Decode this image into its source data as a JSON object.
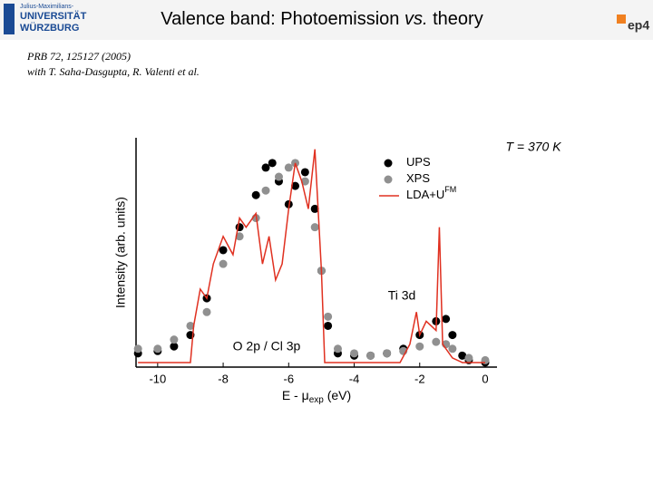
{
  "slide": {
    "logo_lines": [
      "Julius-Maximilians-",
      "UNIVERSITÄT",
      "WÜRZBURG"
    ],
    "title_parts": [
      "Valence band: Photoemission ",
      "vs.",
      " theory"
    ],
    "group_logo": "ep4",
    "reference": [
      "PRB 72, 125127 (2005)",
      "with T. Saha-Dasgupta, R. Valenti et al."
    ]
  },
  "chart_data": {
    "type": "scatter",
    "xlabel_parts": [
      "E - μ",
      "exp",
      " (eV)"
    ],
    "ylabel": "Intensity (arb. units)",
    "xlim": [
      -10.66,
      0.36
    ],
    "ylim": [
      0,
      100
    ],
    "xticks": [
      -10,
      -8,
      -6,
      -4,
      -2,
      0
    ],
    "legend": "top-right",
    "annotations": [
      "T = 370 K",
      "Ti 3d",
      "O 2p / Cl 3p"
    ],
    "series": [
      {
        "name": "UPS",
        "color": "#000000",
        "mode": "markers",
        "x": [
          -10.6,
          -10,
          -9.5,
          -9,
          -8.5,
          -8,
          -7.5,
          -7,
          -6.7,
          -6.5,
          -6.3,
          -6,
          -5.8,
          -5.5,
          -5.2,
          -5,
          -4.8,
          -4.5,
          -4,
          -3.5,
          -3,
          -2.5,
          -2,
          -1.5,
          -1.2,
          -1,
          -0.7,
          -0.5,
          0
        ],
        "values": [
          6,
          7,
          9,
          14,
          30,
          51,
          61,
          75,
          87,
          89,
          81,
          71,
          79,
          85,
          69,
          42,
          18,
          6,
          5,
          5,
          6,
          8,
          14,
          20,
          21,
          14,
          5,
          3,
          2
        ]
      },
      {
        "name": "XPS",
        "color": "#909090",
        "mode": "markers",
        "x": [
          -10.6,
          -10,
          -9.5,
          -9,
          -8.5,
          -8,
          -7.5,
          -7,
          -6.7,
          -6.3,
          -6,
          -5.8,
          -5.5,
          -5.2,
          -5,
          -4.8,
          -4.5,
          -4,
          -3.5,
          -3,
          -2.5,
          -2,
          -1.5,
          -1.2,
          -1,
          -0.5,
          0
        ],
        "values": [
          8,
          8,
          12,
          18,
          24,
          45,
          57,
          65,
          77,
          83,
          87,
          89,
          81,
          61,
          42,
          22,
          8,
          6,
          5,
          6,
          7,
          9,
          11,
          10,
          8,
          4,
          3
        ]
      },
      {
        "name": "LDA+U",
        "name_superscript": "FM",
        "color": "#e03020",
        "mode": "line",
        "x": [
          -10.6,
          -9,
          -8.9,
          -8.7,
          -8.5,
          -8.3,
          -8,
          -7.7,
          -7.5,
          -7.3,
          -7,
          -6.8,
          -6.6,
          -6.4,
          -6.2,
          -6,
          -5.8,
          -5.6,
          -5.4,
          -5.2,
          -5,
          -4.9,
          -2.6,
          -2.3,
          -2.1,
          -2,
          -1.8,
          -1.5,
          -1.4,
          -1.3,
          -1,
          -0.7,
          0
        ],
        "values": [
          2,
          2,
          18,
          34,
          30,
          45,
          57,
          49,
          65,
          61,
          67,
          45,
          57,
          38,
          45,
          69,
          89,
          81,
          69,
          95,
          42,
          2,
          2,
          10,
          24,
          14,
          20,
          16,
          61,
          10,
          4,
          2,
          2
        ]
      }
    ]
  }
}
